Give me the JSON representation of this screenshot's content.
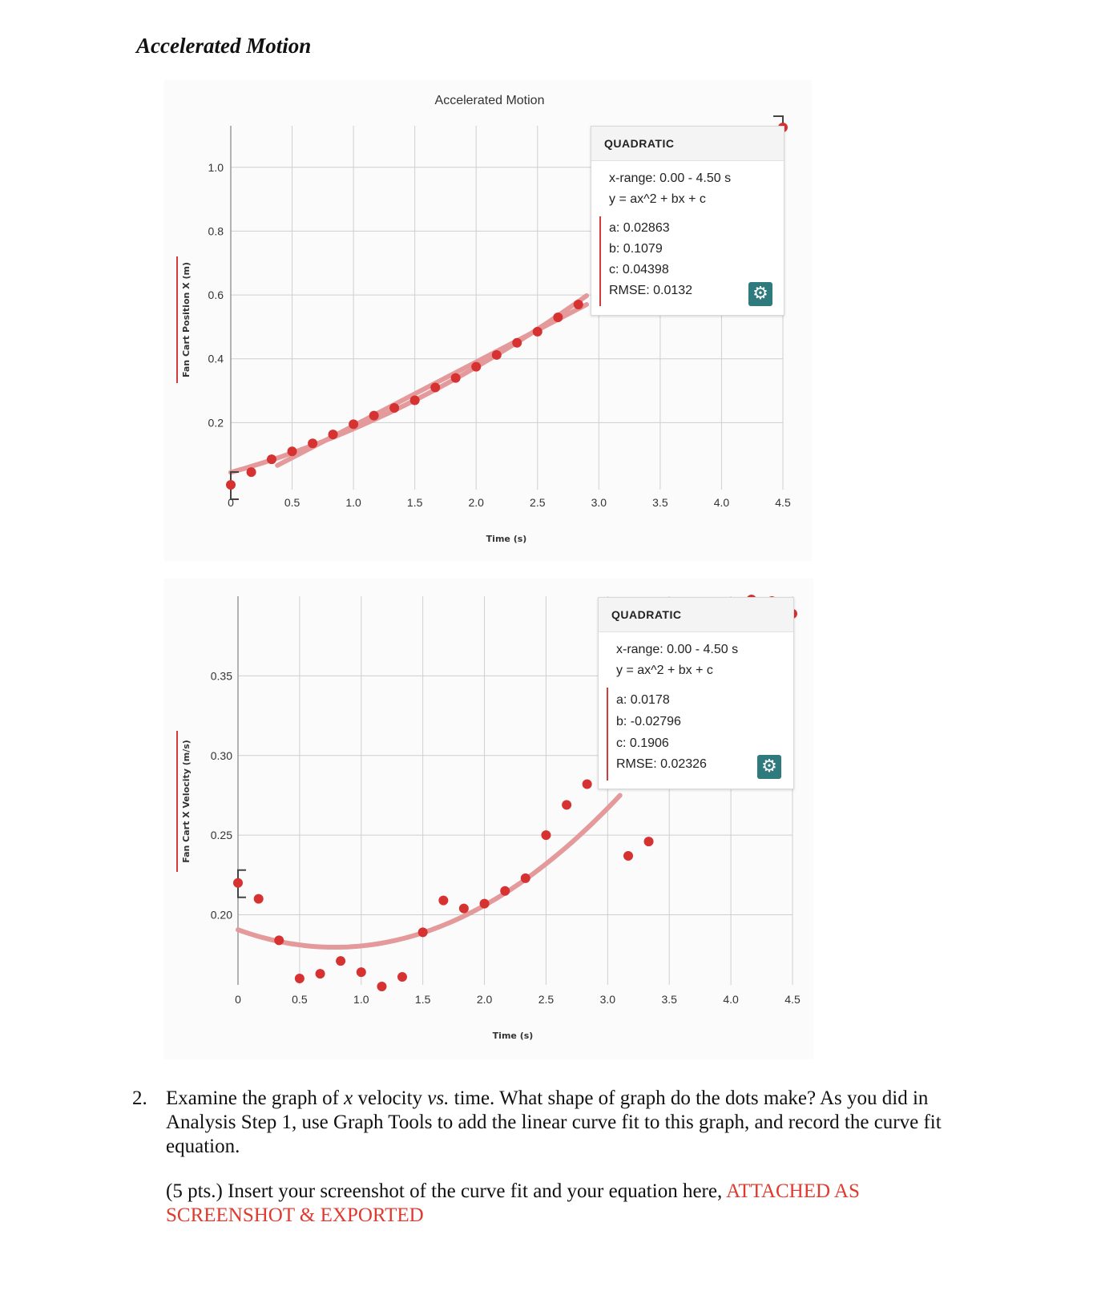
{
  "page": {
    "heading": "Accelerated Motion"
  },
  "question": {
    "number": "2.",
    "line1a": "Examine the graph of ",
    "line1_x": "x",
    "line1b": " velocity ",
    "line1_vs": "vs.",
    "line1c": " time. What shape of graph do the dots make? As you did in Analysis Step 1, use Graph Tools to add the linear curve fit to this graph, and record the curve fit equation.",
    "instruction": "(5 pts.) Insert your screenshot of the curve fit and your equation here,",
    "answer": "ATTACHED AS SCREENSHOT & EXPORTED"
  },
  "colors": {
    "points": "#d63232",
    "fit_line": "#e4999b",
    "grid": "#cfcfcf",
    "axis_label_bar": "#d63a3a",
    "gear": "#2e7a7d",
    "answer_red": "#e03a2f"
  },
  "fits": [
    {
      "heading": "QUADRATIC",
      "xrange": "x-range: 0.00 - 4.50 s",
      "equation": "y = ax^2 + bx + c",
      "a": "a: 0.02863",
      "b": "b: 0.1079",
      "c": "c: 0.04398",
      "rmse": "RMSE: 0.0132",
      "gear_icon": "gear-icon"
    },
    {
      "heading": "QUADRATIC",
      "xrange": "x-range: 0.00 - 4.50 s",
      "equation": "y = ax^2 + bx + c",
      "a": "a: 0.0178",
      "b": "b: -0.02796",
      "c": "c: 0.1906",
      "rmse": "RMSE: 0.02326",
      "gear_icon": "gear-icon"
    }
  ],
  "chart_data": [
    {
      "type": "scatter",
      "title": "Accelerated Motion",
      "xlabel": "Time (s)",
      "ylabel": "Fan Cart Position X  (m)",
      "xlim": [
        0,
        4.5
      ],
      "ylim": [
        -0.01,
        1.13
      ],
      "xticks": [
        "0",
        "0.5",
        "1.0",
        "1.5",
        "2.0",
        "2.5",
        "3.0",
        "3.5",
        "4.0",
        "4.5"
      ],
      "xtick_values": [
        0,
        0.5,
        1.0,
        1.5,
        2.0,
        2.5,
        3.0,
        3.5,
        4.0,
        4.5
      ],
      "yticks": [
        "0.2",
        "0.4",
        "0.6",
        "0.8",
        "1.0"
      ],
      "ytick_values": [
        0.2,
        0.4,
        0.6,
        0.8,
        1.0
      ],
      "grid": true,
      "x": [
        0.0,
        0.167,
        0.333,
        0.5,
        0.667,
        0.833,
        1.0,
        1.167,
        1.333,
        1.5,
        1.667,
        1.833,
        2.0,
        2.167,
        2.333,
        2.5,
        2.667,
        2.833,
        4.5
      ],
      "y": [
        0.005,
        0.045,
        0.085,
        0.11,
        0.135,
        0.163,
        0.195,
        0.222,
        0.246,
        0.27,
        0.31,
        0.34,
        0.375,
        0.412,
        0.45,
        0.485,
        0.53,
        0.57,
        1.125
      ],
      "fit": {
        "kind": "quadratic",
        "a": 0.02863,
        "b": 0.1079,
        "c": 0.04398,
        "x_end": 2.9
      },
      "linear_fit": {
        "slope": 0.2,
        "intercept": -0.01,
        "x_start": 0.38,
        "x_end": 2.9
      }
    },
    {
      "type": "scatter",
      "title": "",
      "xlabel": "Time (s)",
      "ylabel": "Fan Cart X Velocity  (m/s)",
      "xlim": [
        0,
        4.5
      ],
      "ylim": [
        0.156,
        0.4
      ],
      "xticks": [
        "0",
        "0.5",
        "1.0",
        "1.5",
        "2.0",
        "2.5",
        "3.0",
        "3.5",
        "4.0",
        "4.5"
      ],
      "xtick_values": [
        0,
        0.5,
        1.0,
        1.5,
        2.0,
        2.5,
        3.0,
        3.5,
        4.0,
        4.5
      ],
      "yticks": [
        "0.20",
        "0.25",
        "0.30",
        "0.35"
      ],
      "ytick_values": [
        0.2,
        0.25,
        0.3,
        0.35
      ],
      "grid": true,
      "x": [
        0.0,
        0.167,
        0.333,
        0.5,
        0.667,
        0.833,
        1.0,
        1.167,
        1.333,
        1.5,
        1.667,
        1.833,
        2.0,
        2.167,
        2.333,
        2.5,
        2.667,
        2.833,
        3.167,
        3.333,
        4.167,
        4.333,
        4.5
      ],
      "y": [
        0.22,
        0.21,
        0.184,
        0.16,
        0.163,
        0.171,
        0.164,
        0.155,
        0.161,
        0.189,
        0.209,
        0.204,
        0.207,
        0.215,
        0.223,
        0.25,
        0.269,
        0.282,
        0.237,
        0.246,
        0.398,
        0.397,
        0.389
      ],
      "fit": {
        "kind": "quadratic",
        "a": 0.0178,
        "b": -0.02796,
        "c": 0.1906,
        "x_end": 3.1
      }
    }
  ]
}
